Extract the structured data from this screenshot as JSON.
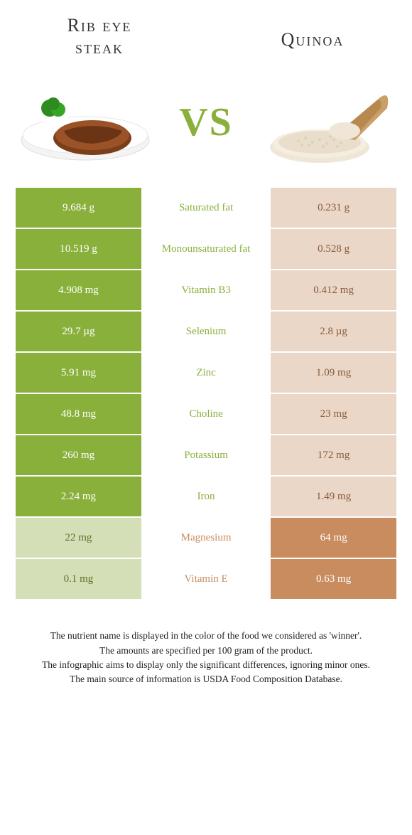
{
  "leftFood": {
    "title": "Rib eye\nsteak"
  },
  "rightFood": {
    "title": "Quinoa"
  },
  "vs": "VS",
  "colors": {
    "left_solid": "#8ab03c",
    "left_faded": "#d4dfb7",
    "right_solid": "#c98c5f",
    "right_faded": "#ead7c8",
    "label_left": "#8ab03c",
    "label_right": "#c98c5f",
    "text_on_solid": "#ffffff",
    "text_on_faded_left": "#5a7226",
    "text_on_faded_right": "#8a5b38"
  },
  "rows": [
    {
      "label": "Saturated fat",
      "left": "9.684 g",
      "right": "0.231 g",
      "winner": "left"
    },
    {
      "label": "Monounsaturated fat",
      "left": "10.519 g",
      "right": "0.528 g",
      "winner": "left"
    },
    {
      "label": "Vitamin B3",
      "left": "4.908 mg",
      "right": "0.412 mg",
      "winner": "left"
    },
    {
      "label": "Selenium",
      "left": "29.7 µg",
      "right": "2.8 µg",
      "winner": "left"
    },
    {
      "label": "Zinc",
      "left": "5.91 mg",
      "right": "1.09 mg",
      "winner": "left"
    },
    {
      "label": "Choline",
      "left": "48.8 mg",
      "right": "23 mg",
      "winner": "left"
    },
    {
      "label": "Potassium",
      "left": "260 mg",
      "right": "172 mg",
      "winner": "left"
    },
    {
      "label": "Iron",
      "left": "2.24 mg",
      "right": "1.49 mg",
      "winner": "left"
    },
    {
      "label": "Magnesium",
      "left": "22 mg",
      "right": "64 mg",
      "winner": "right"
    },
    {
      "label": "Vitamin E",
      "left": "0.1 mg",
      "right": "0.63 mg",
      "winner": "right"
    }
  ],
  "footer": [
    "The nutrient name is displayed in the color of the food we considered as 'winner'.",
    "The amounts are specified per 100 gram of the product.",
    "The infographic aims to display only the significant differences, ignoring minor ones.",
    "The main source of information is USDA Food Composition Database."
  ]
}
